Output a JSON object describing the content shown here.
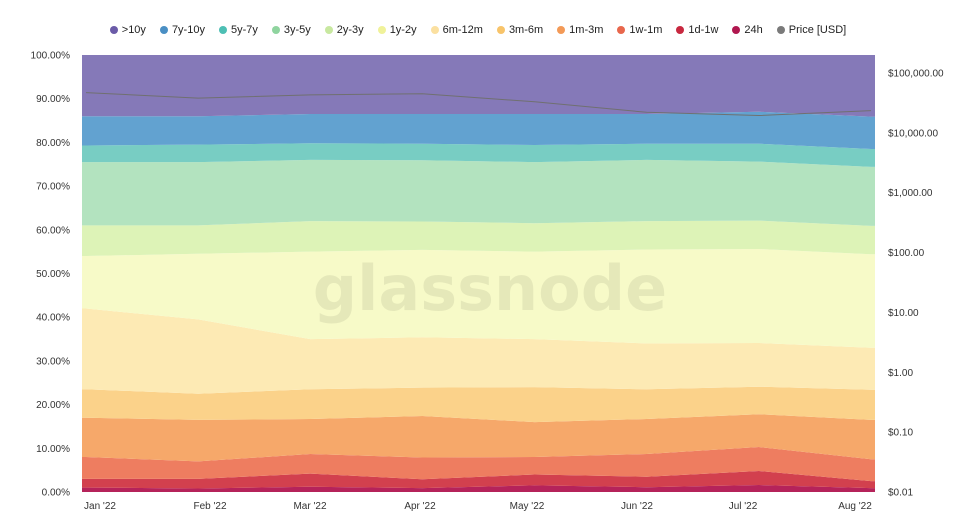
{
  "watermark": "glassnode",
  "chart_data": {
    "type": "area",
    "stacked": true,
    "normalized": true,
    "xlabel": "",
    "ylabel": "",
    "x_ticks": [
      "Jan '22",
      "Feb '22",
      "Mar '22",
      "Apr '22",
      "May '22",
      "Jun '22",
      "Jul '22",
      "Aug '22"
    ],
    "x": [
      "Jan '22",
      "Feb '22",
      "Mar '22",
      "Apr '22",
      "May '22",
      "Jun '22",
      "Jul '22",
      "Aug '22"
    ],
    "y_left_ticks": [
      "0.00%",
      "10.00%",
      "20.00%",
      "30.00%",
      "40.00%",
      "50.00%",
      "60.00%",
      "70.00%",
      "80.00%",
      "90.00%",
      "100.00%"
    ],
    "ylim_left": [
      0,
      100
    ],
    "y_right_ticks": [
      "$0.01",
      "$0.10",
      "$1.00",
      "$10.00",
      "$100.00",
      "$1,000.00",
      "$10,000.00",
      "$100,000.00"
    ],
    "ylim_right_log10": [
      -2,
      5.3
    ],
    "y_right_scale": "log",
    "legend_position": "top",
    "grid": false,
    "series": [
      {
        "name": "24h",
        "color": "#b5235a",
        "values": [
          1.0,
          0.8,
          1.2,
          0.9,
          1.5,
          1.1,
          1.6,
          0.9
        ]
      },
      {
        "name": "1d-1w",
        "color": "#d2404e",
        "values": [
          2.0,
          2.2,
          3.0,
          2.0,
          2.5,
          2.4,
          3.2,
          1.6
        ]
      },
      {
        "name": "1w-1m",
        "color": "#ee7d60",
        "values": [
          5.0,
          4.0,
          4.5,
          5.0,
          4.0,
          5.2,
          5.5,
          5.0
        ]
      },
      {
        "name": "1m-3m",
        "color": "#f6a86a",
        "values": [
          9.0,
          9.5,
          8.0,
          9.5,
          8.0,
          8.0,
          7.5,
          9.0
        ]
      },
      {
        "name": "3m-6m",
        "color": "#fbd28a",
        "values": [
          6.5,
          6.0,
          6.8,
          6.5,
          8.0,
          6.8,
          6.3,
          6.9
        ]
      },
      {
        "name": "6m-12m",
        "color": "#fdeab4",
        "values": [
          18.5,
          17.0,
          11.5,
          11.5,
          11.0,
          10.5,
          10.0,
          9.6
        ]
      },
      {
        "name": "1y-2y",
        "color": "#f7fac8",
        "values": [
          12.0,
          15.0,
          20.0,
          20.0,
          20.0,
          21.5,
          21.5,
          21.4
        ]
      },
      {
        "name": "2y-3y",
        "color": "#ddf3b7",
        "values": [
          7.0,
          6.5,
          7.0,
          6.5,
          6.5,
          6.5,
          6.5,
          6.5
        ]
      },
      {
        "name": "3y-5y",
        "color": "#b3e3bf",
        "values": [
          14.5,
          14.5,
          14.0,
          14.0,
          14.0,
          14.0,
          13.5,
          13.5
        ]
      },
      {
        "name": "5y-7y",
        "color": "#78cdc3",
        "values": [
          3.8,
          4.0,
          3.8,
          3.8,
          3.9,
          3.7,
          4.1,
          4.1
        ]
      },
      {
        "name": "7y-10y",
        "color": "#62a2d0",
        "values": [
          6.7,
          6.5,
          6.7,
          6.8,
          7.1,
          6.8,
          7.3,
          7.4
        ]
      },
      {
        "name": ">10y",
        "color": "#8579b8",
        "values": [
          14.0,
          14.0,
          14.0,
          14.0,
          13.0,
          13.5,
          13.0,
          14.1
        ]
      }
    ],
    "price_series": {
      "name": "Price [USD]",
      "color": "#707070",
      "values": [
        47000,
        38000,
        43000,
        45000,
        33000,
        22000,
        19500,
        23500
      ]
    },
    "legend": [
      {
        "name": ">10y",
        "color": "#6b5ba8"
      },
      {
        "name": "7y-10y",
        "color": "#4a8fc4"
      },
      {
        "name": "5y-7y",
        "color": "#4dbfb4"
      },
      {
        "name": "3y-5y",
        "color": "#8fd49f"
      },
      {
        "name": "2y-3y",
        "color": "#c8e8a0"
      },
      {
        "name": "1y-2y",
        "color": "#f0f29a"
      },
      {
        "name": "6m-12m",
        "color": "#fbe0a0"
      },
      {
        "name": "3m-6m",
        "color": "#f8c46a"
      },
      {
        "name": "1m-3m",
        "color": "#f39a57"
      },
      {
        "name": "1w-1m",
        "color": "#e8674c"
      },
      {
        "name": "1d-1w",
        "color": "#c8283f"
      },
      {
        "name": "24h",
        "color": "#b0174f"
      },
      {
        "name": "Price [USD]",
        "color": "#7a7a7a"
      }
    ]
  }
}
